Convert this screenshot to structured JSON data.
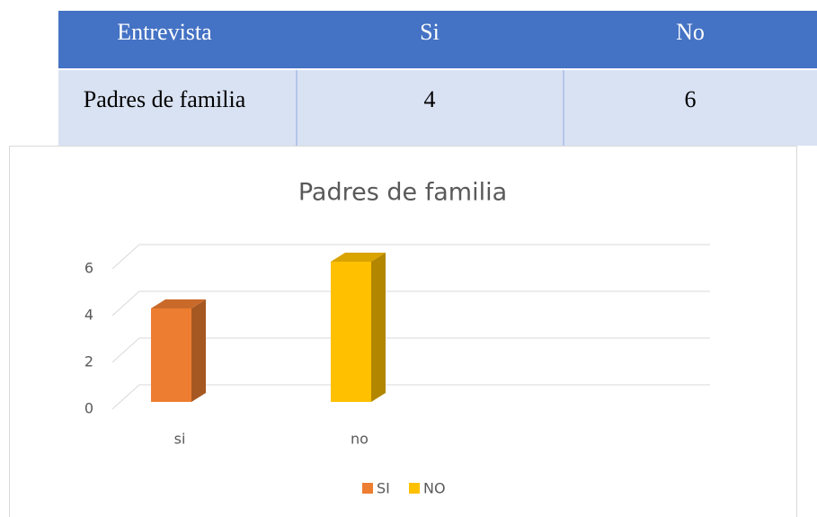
{
  "table": {
    "header": [
      "Entrevista",
      "Si",
      "No"
    ],
    "rows": [
      [
        "Padres de familia",
        "4",
        "6"
      ]
    ]
  },
  "chart_data": {
    "type": "bar3d",
    "title": "Padres de familia",
    "categories": [
      "si",
      "no"
    ],
    "series": [
      {
        "name": "SI",
        "color": "#ed7d31",
        "values": [
          4,
          null
        ]
      },
      {
        "name": "NO",
        "color": "#ffc000",
        "values": [
          null,
          6
        ]
      }
    ],
    "ylim": [
      0,
      6
    ],
    "yticks": [
      0,
      2,
      4,
      6
    ],
    "grid": true,
    "legend": "bottom"
  }
}
